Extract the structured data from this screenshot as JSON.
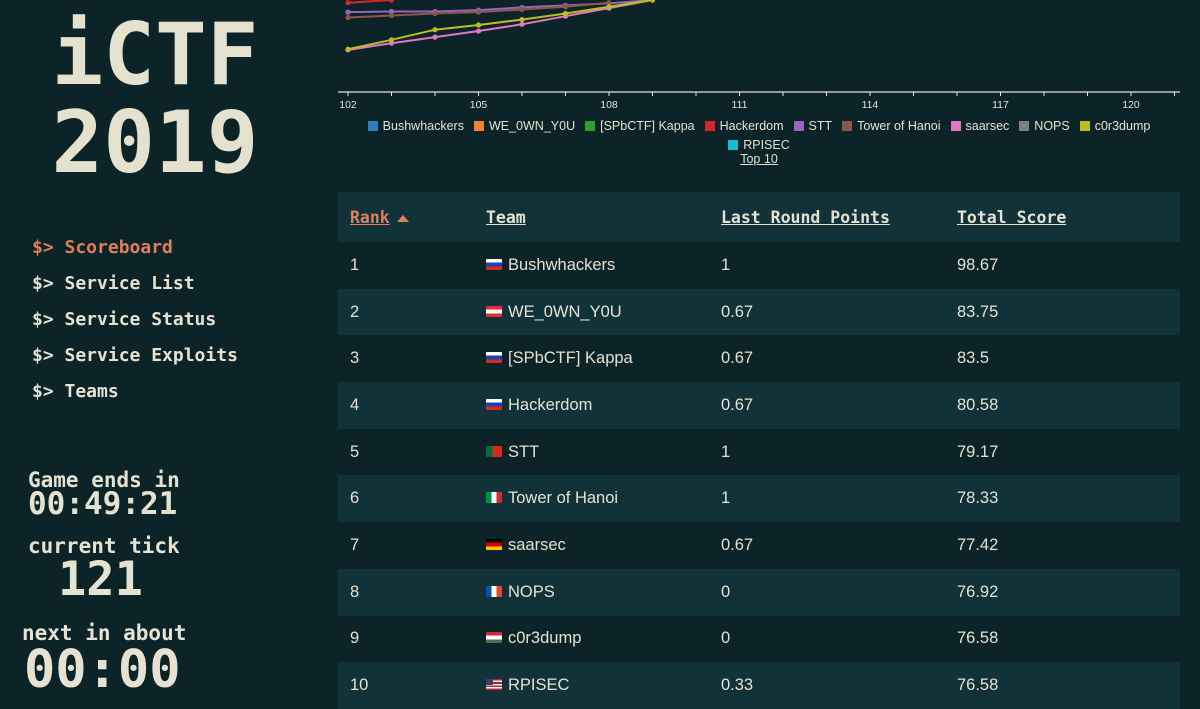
{
  "sidebar": {
    "logo_line1": "iCTF",
    "logo_line2": "2019",
    "nav": [
      {
        "label": "$> Scoreboard",
        "active": true
      },
      {
        "label": "$> Service List",
        "active": false
      },
      {
        "label": "$> Service Status",
        "active": false
      },
      {
        "label": "$> Service Exploits",
        "active": false
      },
      {
        "label": "$> Teams",
        "active": false
      }
    ],
    "game_ends_label": "Game ends in",
    "game_ends_value": "00:49:21",
    "current_tick_label": "current tick",
    "current_tick_value": "121",
    "next_label": "next in about",
    "next_value": "00:00"
  },
  "chart_data": {
    "type": "line",
    "x_ticks": [
      "102",
      "105",
      "108",
      "111",
      "114",
      "117",
      "120"
    ],
    "xlim": [
      102,
      121
    ],
    "ylim": [
      70,
      98
    ],
    "series": [
      {
        "name": "Bushwhackers",
        "color": "#2c7fb8",
        "x": [],
        "y": []
      },
      {
        "name": "WE_0WN_Y0U",
        "color": "#f58231",
        "x": [],
        "y": []
      },
      {
        "name": "[SPbCTF] Kappa",
        "color": "#2ca02c",
        "x": [],
        "y": []
      },
      {
        "name": "Hackerdom",
        "color": "#d62728",
        "x": [
          102,
          103
        ],
        "y": [
          97.6,
          98.0
        ]
      },
      {
        "name": "STT",
        "color": "#9467bd",
        "x": [
          102,
          103,
          104,
          105,
          106,
          107,
          108,
          109
        ],
        "y": [
          96.2,
          96.3,
          96.3,
          96.5,
          96.9,
          97.2,
          97.5,
          98.0
        ]
      },
      {
        "name": "Tower of Hanoi",
        "color": "#8c564b",
        "x": [
          102,
          103,
          104,
          105,
          106,
          107,
          108
        ],
        "y": [
          95.4,
          95.7,
          96.0,
          96.2,
          96.6,
          97.0,
          97.6
        ]
      },
      {
        "name": "saarsec",
        "color": "#e377c2",
        "x": [
          102,
          103,
          104,
          105,
          106,
          107,
          108,
          109
        ],
        "y": [
          90.6,
          91.6,
          92.5,
          93.4,
          94.4,
          95.6,
          96.8,
          98.0
        ]
      },
      {
        "name": "NOPS",
        "color": "#7f7f7f",
        "x": [],
        "y": []
      },
      {
        "name": "c0r3dump",
        "color": "#bcbd22",
        "x": [
          102,
          103,
          104,
          105,
          106,
          107,
          108,
          109
        ],
        "y": [
          90.7,
          92.1,
          93.6,
          94.3,
          95.1,
          96.0,
          97.0,
          98.0
        ]
      },
      {
        "name": "RPISEC",
        "color": "#17becf",
        "x": [],
        "y": []
      }
    ],
    "top_link": "Top 10"
  },
  "table": {
    "headers": [
      "Rank",
      "Team",
      "Last Round Points",
      "Total Score"
    ],
    "rows": [
      {
        "rank": "1",
        "team": "Bushwhackers",
        "flag": "ru",
        "last": "1",
        "total": "98.67"
      },
      {
        "rank": "2",
        "team": "WE_0WN_Y0U",
        "flag": "at",
        "last": "0.67",
        "total": "83.75"
      },
      {
        "rank": "3",
        "team": "[SPbCTF] Kappa",
        "flag": "ru",
        "last": "0.67",
        "total": "83.5"
      },
      {
        "rank": "4",
        "team": "Hackerdom",
        "flag": "ru",
        "last": "0.67",
        "total": "80.58"
      },
      {
        "rank": "5",
        "team": "STT",
        "flag": "pt",
        "last": "1",
        "total": "79.17"
      },
      {
        "rank": "6",
        "team": "Tower of Hanoi",
        "flag": "it",
        "last": "1",
        "total": "78.33"
      },
      {
        "rank": "7",
        "team": "saarsec",
        "flag": "de",
        "last": "0.67",
        "total": "77.42"
      },
      {
        "rank": "8",
        "team": "NOPS",
        "flag": "fr",
        "last": "0",
        "total": "76.92"
      },
      {
        "rank": "9",
        "team": "c0r3dump",
        "flag": "hu",
        "last": "0",
        "total": "76.58"
      },
      {
        "rank": "10",
        "team": "RPISEC",
        "flag": "us",
        "last": "0.33",
        "total": "76.58"
      }
    ]
  }
}
